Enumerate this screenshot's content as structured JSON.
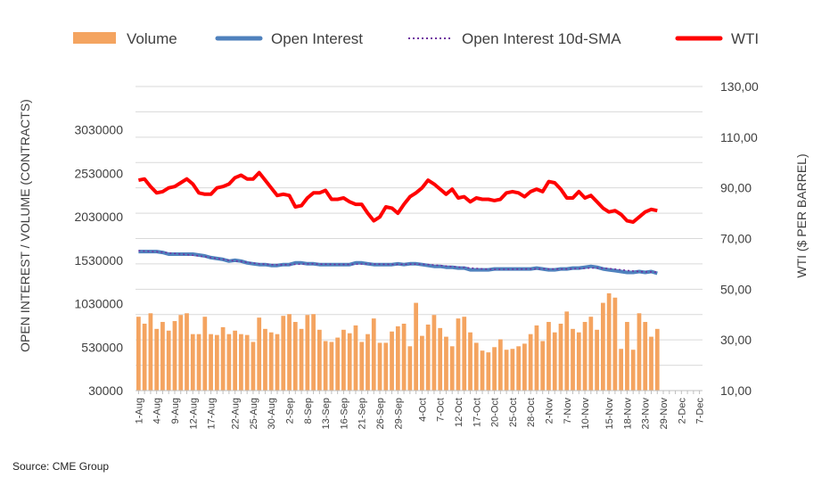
{
  "chart_data": {
    "type": "bar+line",
    "legend": {
      "placement": "top",
      "entries": [
        {
          "label": "Volume",
          "style": "bar",
          "color": "#f4a460"
        },
        {
          "label": "Open Interest",
          "style": "line",
          "color": "#4f81bd"
        },
        {
          "label": "Open Interest 10d-SMA",
          "style": "dotted",
          "color": "#7030a0"
        },
        {
          "label": "WTI",
          "style": "line",
          "color": "#ff0000"
        }
      ]
    },
    "y_left": {
      "label": "OPEN INTEREST / VOLUME (CONTRACTS)",
      "ticks": [
        "30000",
        "530000",
        "1030000",
        "1530000",
        "2030000",
        "2530000",
        "3030000"
      ],
      "range": [
        30000,
        3530000
      ]
    },
    "y_right": {
      "label": "WTI ($ PER BARREL)",
      "ticks": [
        "10,00",
        "30,00",
        "50,00",
        "70,00",
        "90,00",
        "110,00",
        "130,00"
      ],
      "range": [
        10,
        130
      ]
    },
    "x_ticks": [
      "1-Aug",
      "4-Aug",
      "9-Aug",
      "12-Aug",
      "17-Aug",
      "22-Aug",
      "25-Aug",
      "30-Aug",
      "2-Sep",
      "8-Sep",
      "13-Sep",
      "16-Sep",
      "21-Sep",
      "26-Sep",
      "29-Sep",
      "4-Oct",
      "7-Oct",
      "12-Oct",
      "17-Oct",
      "20-Oct",
      "25-Oct",
      "28-Oct",
      "2-Nov",
      "7-Nov",
      "10-Nov",
      "15-Nov",
      "18-Nov",
      "23-Nov",
      "29-Nov",
      "2-Dec",
      "7-Dec"
    ],
    "grid": "horizontal",
    "source": "Source: CME Group",
    "series": {
      "volume": [
        880000,
        800000,
        920000,
        740000,
        820000,
        720000,
        830000,
        900000,
        920000,
        680000,
        680000,
        880000,
        680000,
        670000,
        760000,
        680000,
        720000,
        680000,
        670000,
        590000,
        870000,
        740000,
        700000,
        680000,
        890000,
        910000,
        820000,
        740000,
        900000,
        910000,
        730000,
        600000,
        590000,
        640000,
        730000,
        690000,
        780000,
        590000,
        680000,
        860000,
        580000,
        580000,
        710000,
        770000,
        800000,
        540000,
        1040000,
        660000,
        790000,
        900000,
        750000,
        650000,
        540000,
        860000,
        880000,
        700000,
        580000,
        490000,
        470000,
        530000,
        620000,
        500000,
        510000,
        540000,
        570000,
        680000,
        780000,
        600000,
        820000,
        700000,
        800000,
        940000,
        740000,
        700000,
        820000,
        880000,
        730000,
        1040000,
        1150000,
        1100000,
        510000,
        820000,
        500000,
        920000,
        820000,
        650000,
        740000
      ],
      "open_interest": [
        1630000,
        1630000,
        1630000,
        1630000,
        1620000,
        1600000,
        1600000,
        1600000,
        1600000,
        1600000,
        1590000,
        1580000,
        1560000,
        1550000,
        1540000,
        1520000,
        1530000,
        1520000,
        1500000,
        1490000,
        1480000,
        1480000,
        1470000,
        1470000,
        1480000,
        1480000,
        1500000,
        1500000,
        1490000,
        1490000,
        1480000,
        1480000,
        1480000,
        1480000,
        1480000,
        1480000,
        1500000,
        1500000,
        1490000,
        1480000,
        1480000,
        1480000,
        1480000,
        1490000,
        1480000,
        1490000,
        1490000,
        1480000,
        1470000,
        1460000,
        1460000,
        1450000,
        1450000,
        1440000,
        1440000,
        1420000,
        1420000,
        1420000,
        1420000,
        1430000,
        1430000,
        1430000,
        1430000,
        1430000,
        1430000,
        1430000,
        1440000,
        1430000,
        1420000,
        1420000,
        1430000,
        1430000,
        1440000,
        1440000,
        1450000,
        1460000,
        1450000,
        1430000,
        1420000,
        1410000,
        1400000,
        1390000,
        1390000,
        1400000,
        1390000,
        1400000,
        1380000
      ],
      "open_interest_sma": [
        1640000,
        1635000,
        1632000,
        1628000,
        1622000,
        1615000,
        1608000,
        1600000,
        1595000,
        1588000,
        1580000,
        1570000,
        1560000,
        1550000,
        1540000,
        1530000,
        1522000,
        1515000,
        1505000,
        1498000,
        1490000,
        1485000,
        1480000,
        1478000,
        1478000,
        1480000,
        1482000,
        1485000,
        1488000,
        1488000,
        1486000,
        1484000,
        1483000,
        1482000,
        1482000,
        1482000,
        1484000,
        1486000,
        1487000,
        1486000,
        1484000,
        1483000,
        1482000,
        1482000,
        1483000,
        1484000,
        1485000,
        1484000,
        1481000,
        1476000,
        1470000,
        1464000,
        1458000,
        1452000,
        1447000,
        1441000,
        1436000,
        1431000,
        1427000,
        1425000,
        1425000,
        1426000,
        1427000,
        1428000,
        1429000,
        1430000,
        1431000,
        1431000,
        1430000,
        1429000,
        1429000,
        1430000,
        1432000,
        1434000,
        1437000,
        1440000,
        1441000,
        1439000,
        1435000,
        1428000,
        1421000,
        1413000,
        1406000,
        1400000,
        1396000,
        1395000,
        1393000
      ],
      "wti": [
        93.0,
        93.5,
        90.5,
        88.0,
        88.5,
        90.0,
        90.5,
        92.0,
        93.5,
        91.5,
        88.0,
        87.5,
        87.5,
        90.0,
        90.5,
        91.5,
        94.0,
        95.0,
        93.5,
        93.5,
        96.0,
        93.0,
        90.0,
        87.0,
        87.5,
        87.0,
        82.5,
        83.0,
        86.0,
        88.0,
        88.0,
        89.0,
        85.5,
        85.5,
        86.0,
        84.5,
        83.5,
        83.5,
        80.0,
        77.0,
        78.5,
        82.5,
        82.0,
        80.0,
        83.5,
        86.5,
        88.0,
        90.0,
        93.0,
        91.5,
        89.5,
        87.5,
        89.5,
        86.0,
        86.5,
        84.5,
        86.0,
        85.5,
        85.5,
        85.0,
        85.5,
        88.0,
        88.5,
        88.0,
        86.5,
        88.5,
        89.5,
        88.5,
        92.5,
        92.0,
        89.5,
        86.0,
        86.0,
        88.5,
        86.0,
        87.0,
        84.5,
        82.0,
        80.5,
        81.0,
        79.5,
        77.0,
        76.5,
        78.5,
        80.5,
        81.5,
        81.0
      ]
    }
  }
}
